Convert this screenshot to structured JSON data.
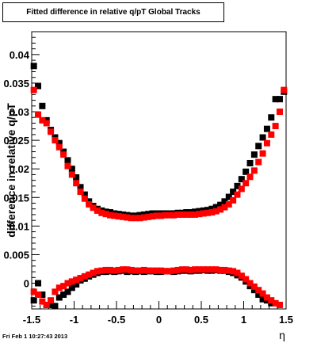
{
  "footer_text": "Fri Feb  1 10:27:43 2013",
  "chart_data": {
    "type": "scatter",
    "title": "Fitted difference in relative q/pT  Global Tracks",
    "xlabel": "η",
    "ylabel": "difference in relative q/pT",
    "xlim": [
      -1.5,
      1.5
    ],
    "ylim": [
      -0.0045,
      0.044
    ],
    "x_ticks": [
      -1.5,
      -1,
      -0.5,
      0,
      0.5,
      1,
      1.5
    ],
    "x_tick_labels": [
      "-1.5",
      "-1",
      "-0.5",
      "0",
      "0.5",
      "1",
      "1.5"
    ],
    "y_ticks": [
      0,
      0.005,
      0.01,
      0.015,
      0.02,
      0.025,
      0.03,
      0.035,
      0.04
    ],
    "y_tick_labels": [
      "0",
      "0.005",
      "0.01",
      "0.015",
      "0.02",
      "0.025",
      "0.03",
      "0.035",
      "0.04"
    ],
    "grid": false,
    "legend": "none",
    "series": [
      {
        "color": "#000000",
        "x": [
          -1.475,
          -1.425,
          -1.375,
          -1.325,
          -1.275,
          -1.225,
          -1.175,
          -1.125,
          -1.075,
          -1.025,
          -0.975,
          -0.925,
          -0.875,
          -0.825,
          -0.775,
          -0.725,
          -0.675,
          -0.625,
          -0.575,
          -0.525,
          -0.475,
          -0.425,
          -0.375,
          -0.325,
          -0.275,
          -0.225,
          -0.175,
          -0.125,
          -0.075,
          -0.025,
          0.025,
          0.075,
          0.125,
          0.175,
          0.225,
          0.275,
          0.325,
          0.375,
          0.425,
          0.475,
          0.525,
          0.575,
          0.625,
          0.675,
          0.725,
          0.775,
          0.825,
          0.875,
          0.925,
          0.975,
          1.025,
          1.075,
          1.125,
          1.175,
          1.225,
          1.275,
          1.325,
          1.375,
          1.425,
          1.475
        ],
        "y": [
          0.038,
          0.0345,
          0.031,
          0.0285,
          0.0268,
          0.0255,
          0.0245,
          0.023,
          0.0215,
          0.02,
          0.0185,
          0.0168,
          0.0155,
          0.0143,
          0.0135,
          0.013,
          0.0127,
          0.0125,
          0.0124,
          0.0122,
          0.0121,
          0.012,
          0.0119,
          0.0118,
          0.0118,
          0.0119,
          0.012,
          0.0121,
          0.0122,
          0.0122,
          0.0122,
          0.0122,
          0.0122,
          0.0122,
          0.0123,
          0.0123,
          0.0124,
          0.0124,
          0.0125,
          0.0126,
          0.0127,
          0.0128,
          0.013,
          0.0133,
          0.0137,
          0.0143,
          0.0151,
          0.016,
          0.017,
          0.0182,
          0.0195,
          0.021,
          0.0225,
          0.024,
          0.0255,
          0.027,
          0.029,
          0.0322,
          0.0322,
          0.0335
        ]
      },
      {
        "color": "#ff0000",
        "x": [
          -1.475,
          -1.425,
          -1.375,
          -1.325,
          -1.275,
          -1.225,
          -1.175,
          -1.125,
          -1.075,
          -1.025,
          -0.975,
          -0.925,
          -0.875,
          -0.825,
          -0.775,
          -0.725,
          -0.675,
          -0.625,
          -0.575,
          -0.525,
          -0.475,
          -0.425,
          -0.375,
          -0.325,
          -0.275,
          -0.225,
          -0.175,
          -0.125,
          -0.075,
          -0.025,
          0.025,
          0.075,
          0.125,
          0.175,
          0.225,
          0.275,
          0.325,
          0.375,
          0.425,
          0.475,
          0.525,
          0.575,
          0.625,
          0.675,
          0.725,
          0.775,
          0.825,
          0.875,
          0.925,
          0.975,
          1.025,
          1.075,
          1.125,
          1.175,
          1.225,
          1.275,
          1.325,
          1.375,
          1.425,
          1.475
        ],
        "y": [
          0.0338,
          0.0295,
          0.0285,
          0.028,
          0.0265,
          0.025,
          0.0238,
          0.0225,
          0.0205,
          0.019,
          0.0175,
          0.016,
          0.0148,
          0.0138,
          0.0132,
          0.0127,
          0.0123,
          0.0121,
          0.0119,
          0.0118,
          0.0117,
          0.0116,
          0.0115,
          0.0114,
          0.0114,
          0.0114,
          0.0115,
          0.0116,
          0.0117,
          0.0118,
          0.0118,
          0.0119,
          0.0119,
          0.0119,
          0.012,
          0.012,
          0.012,
          0.012,
          0.012,
          0.0121,
          0.0122,
          0.0123,
          0.0124,
          0.0126,
          0.0129,
          0.0133,
          0.0138,
          0.0145,
          0.0155,
          0.0165,
          0.0175,
          0.0186,
          0.0197,
          0.0212,
          0.0227,
          0.0245,
          0.026,
          0.0275,
          0.03,
          0.0338
        ]
      },
      {
        "color": "#000000",
        "x": [
          -1.475,
          -1.425,
          -1.375,
          -1.325,
          -1.275,
          -1.225,
          -1.175,
          -1.125,
          -1.075,
          -1.025,
          -0.975,
          -0.925,
          -0.875,
          -0.825,
          -0.775,
          -0.725,
          -0.675,
          -0.625,
          -0.575,
          -0.525,
          -0.475,
          -0.425,
          -0.375,
          -0.325,
          -0.275,
          -0.225,
          -0.175,
          -0.125,
          -0.075,
          -0.025,
          0.025,
          0.075,
          0.125,
          0.175,
          0.225,
          0.275,
          0.325,
          0.375,
          0.425,
          0.475,
          0.525,
          0.575,
          0.625,
          0.675,
          0.725,
          0.775,
          0.825,
          0.875,
          0.925,
          0.975,
          1.025,
          1.075,
          1.125,
          1.175,
          1.225,
          1.275,
          1.325
        ],
        "y": [
          -0.003,
          0.0,
          -0.002,
          -0.0038,
          -0.0038,
          -0.004,
          -0.0025,
          -0.002,
          -0.0015,
          -0.0008,
          -0.0002,
          0.0005,
          0.0008,
          0.0012,
          0.0015,
          0.0018,
          0.002,
          0.002,
          0.0021,
          0.002,
          0.0021,
          0.0022,
          0.002,
          0.0021,
          0.002,
          0.0021,
          0.002,
          0.0021,
          0.0021,
          0.002,
          0.002,
          0.0021,
          0.0021,
          0.002,
          0.0021,
          0.0022,
          0.0022,
          0.0021,
          0.0022,
          0.0022,
          0.0023,
          0.0022,
          0.0022,
          0.0023,
          0.0022,
          0.0022,
          0.002,
          0.0018,
          0.0014,
          0.001,
          0.0003,
          -0.0005,
          -0.0012,
          -0.002,
          -0.0028,
          -0.003,
          -0.0035
        ]
      },
      {
        "color": "#ff0000",
        "x": [
          -1.475,
          -1.425,
          -1.375,
          -1.325,
          -1.275,
          -1.225,
          -1.175,
          -1.125,
          -1.075,
          -1.025,
          -0.975,
          -0.925,
          -0.875,
          -0.825,
          -0.775,
          -0.725,
          -0.675,
          -0.625,
          -0.575,
          -0.525,
          -0.475,
          -0.425,
          -0.375,
          -0.325,
          -0.275,
          -0.225,
          -0.175,
          -0.125,
          -0.075,
          -0.025,
          0.025,
          0.075,
          0.125,
          0.175,
          0.225,
          0.275,
          0.325,
          0.375,
          0.425,
          0.475,
          0.525,
          0.575,
          0.625,
          0.675,
          0.725,
          0.775,
          0.825,
          0.875,
          0.925,
          0.975,
          1.025,
          1.075,
          1.125,
          1.175,
          1.225,
          1.275,
          1.325,
          1.375,
          1.425
        ],
        "y": [
          -0.0015,
          -0.002,
          -0.0032,
          -0.0038,
          -0.003,
          -0.0015,
          -0.0008,
          -0.0005,
          0.0,
          0.0003,
          0.0006,
          0.0009,
          0.0012,
          0.0015,
          0.0018,
          0.0021,
          0.0022,
          0.0023,
          0.0023,
          0.0022,
          0.0023,
          0.0024,
          0.0024,
          0.0023,
          0.0022,
          0.0022,
          0.0023,
          0.0022,
          0.0022,
          0.0022,
          0.0022,
          0.0021,
          0.0021,
          0.0022,
          0.0023,
          0.0024,
          0.0024,
          0.0023,
          0.0024,
          0.0024,
          0.0024,
          0.0024,
          0.0024,
          0.0024,
          0.0023,
          0.0023,
          0.0022,
          0.0021,
          0.0018,
          0.0013,
          0.0007,
          0.0,
          -0.0006,
          -0.0012,
          -0.0018,
          -0.0025,
          -0.003,
          -0.0035,
          -0.0038
        ]
      }
    ]
  }
}
